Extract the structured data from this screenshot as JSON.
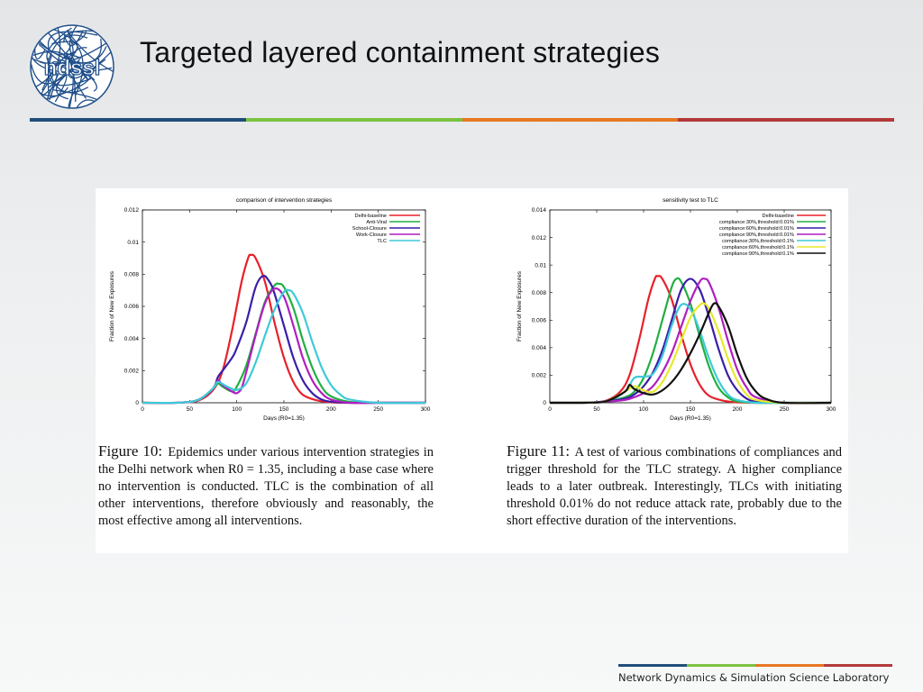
{
  "header": {
    "title": "Targeted layered containment strategies",
    "logo_text": "ndssl"
  },
  "footer": {
    "lab_name": "Network Dynamics & Simulation Science Laboratory"
  },
  "colors": {
    "rule": [
      "#1f4e79",
      "#7cc242",
      "#e87722",
      "#b23a3a"
    ],
    "logo": "#1f4e8a"
  },
  "figure10": {
    "label": "Figure 10:",
    "text": "Epidemics under various intervention strategies in the Delhi network when R0 = 1.35, including a base case where no intervention is conducted. TLC is the combination of all other interventions, therefore obviously and reasonably, the most effective among all interventions."
  },
  "figure11": {
    "label": "Figure 11:",
    "text": "A test of various combinations of compliances and trigger threshold for the TLC strategy. A higher compliance leads to a later outbreak. Interestingly, TLCs with initiating threshold 0.01% do not reduce attack rate, probably due to the short effective duration of the interventions."
  },
  "chart_data": [
    {
      "type": "line",
      "title": "comparison of intervention strategies",
      "xlabel": "Days (R0=1.35)",
      "ylabel": "Fraction of New Exposures",
      "xlim": [
        0,
        300
      ],
      "ylim": [
        0,
        0.012
      ],
      "xticks": [
        "0",
        "50",
        "100",
        "150",
        "200",
        "250",
        "300"
      ],
      "yticks": [
        "0",
        "0.002",
        "0.004",
        "0.006",
        "0.008",
        "0.01",
        "0.012"
      ],
      "legend_position": "top-right",
      "series": [
        {
          "name": "Delhi-baseline",
          "color": "#e8202a",
          "x": [
            0,
            40,
            60,
            75,
            85,
            95,
            105,
            112,
            115,
            120,
            130,
            140,
            150,
            160,
            170,
            185,
            200,
            220,
            250,
            300
          ],
          "y": [
            0,
            1e-05,
            0.00015,
            0.0008,
            0.002,
            0.0045,
            0.0075,
            0.009,
            0.0092,
            0.009,
            0.0075,
            0.005,
            0.0028,
            0.0013,
            0.0005,
            0.00015,
            3e-05,
            0,
            0,
            0
          ]
        },
        {
          "name": "Anti-Viral",
          "color": "#20b040",
          "x": [
            0,
            40,
            60,
            75,
            80,
            85,
            95,
            100,
            110,
            120,
            130,
            140,
            145,
            150,
            160,
            170,
            180,
            190,
            200,
            220,
            250,
            300
          ],
          "y": [
            0,
            1e-05,
            0.0002,
            0.0009,
            0.0012,
            0.001,
            0.0007,
            0.001,
            0.0023,
            0.0043,
            0.0063,
            0.0073,
            0.0074,
            0.0072,
            0.0059,
            0.0039,
            0.0022,
            0.001,
            0.0004,
            5e-05,
            0,
            0
          ]
        },
        {
          "name": "School-Closure",
          "color": "#3a1ea8",
          "x": [
            0,
            40,
            60,
            75,
            80,
            85,
            95,
            100,
            110,
            120,
            128,
            135,
            140,
            150,
            160,
            170,
            180,
            190,
            200,
            220,
            250,
            300
          ],
          "y": [
            0,
            1e-05,
            0.0002,
            0.0009,
            0.0016,
            0.002,
            0.0028,
            0.0034,
            0.005,
            0.0072,
            0.0079,
            0.0075,
            0.0068,
            0.0048,
            0.0028,
            0.0014,
            0.0006,
            0.0002,
            6e-05,
            0,
            0,
            0
          ]
        },
        {
          "name": "Work-Closure",
          "color": "#b01ec0",
          "x": [
            0,
            40,
            60,
            75,
            80,
            85,
            95,
            100,
            105,
            110,
            120,
            130,
            140,
            150,
            160,
            170,
            180,
            190,
            200,
            220,
            250,
            300
          ],
          "y": [
            0,
            1e-05,
            0.0002,
            0.0009,
            0.0014,
            0.0011,
            0.0007,
            0.0006,
            0.0009,
            0.0019,
            0.0042,
            0.0062,
            0.0071,
            0.0066,
            0.0048,
            0.0028,
            0.0014,
            0.0006,
            0.0002,
            0,
            0,
            0
          ]
        },
        {
          "name": "TLC",
          "color": "#3ecad8",
          "x": [
            0,
            40,
            60,
            75,
            80,
            90,
            100,
            110,
            120,
            130,
            140,
            150,
            155,
            160,
            170,
            180,
            190,
            200,
            210,
            220,
            250,
            300
          ],
          "y": [
            0,
            1e-05,
            0.0002,
            0.0009,
            0.0013,
            0.001,
            0.0008,
            0.0012,
            0.0025,
            0.0042,
            0.0058,
            0.0069,
            0.007,
            0.0068,
            0.0056,
            0.0038,
            0.0022,
            0.0011,
            0.0005,
            0.0002,
            0,
            0
          ]
        }
      ]
    },
    {
      "type": "line",
      "title": "sensitivity test to TLC",
      "xlabel": "Days (R0=1.35)",
      "ylabel": "Fraction of New Exposures",
      "xlim": [
        0,
        300
      ],
      "ylim": [
        0,
        0.014
      ],
      "xticks": [
        "0",
        "50",
        "100",
        "150",
        "200",
        "250",
        "300"
      ],
      "yticks": [
        "0",
        "0.002",
        "0.004",
        "0.006",
        "0.008",
        "0.01",
        "0.012",
        "0.014"
      ],
      "legend_position": "top-right",
      "series": [
        {
          "name": "Delhi-baseline",
          "color": "#e8202a",
          "x": [
            0,
            40,
            60,
            75,
            85,
            95,
            105,
            112,
            115,
            120,
            130,
            140,
            150,
            160,
            170,
            185,
            200,
            220,
            250,
            300
          ],
          "y": [
            0,
            1e-05,
            0.00015,
            0.0008,
            0.002,
            0.0045,
            0.0075,
            0.009,
            0.0092,
            0.009,
            0.0075,
            0.005,
            0.0028,
            0.0013,
            0.0005,
            0.00015,
            3e-05,
            0,
            0,
            0
          ]
        },
        {
          "name": "compliance:30%,threshold:0.01%",
          "color": "#20b040",
          "x": [
            0,
            40,
            60,
            80,
            90,
            100,
            110,
            120,
            130,
            135,
            140,
            150,
            160,
            170,
            180,
            190,
            200,
            220,
            250,
            300
          ],
          "y": [
            0,
            1e-05,
            0.0001,
            0.0004,
            0.0008,
            0.0018,
            0.0036,
            0.006,
            0.0084,
            0.009,
            0.0088,
            0.0072,
            0.0048,
            0.0026,
            0.0011,
            0.0004,
            0.0001,
            0,
            0,
            0
          ]
        },
        {
          "name": "compliance:60%,threshold:0.01%",
          "color": "#3a1ea8",
          "x": [
            0,
            40,
            60,
            80,
            90,
            100,
            110,
            120,
            130,
            140,
            150,
            160,
            170,
            180,
            190,
            200,
            210,
            220,
            250,
            300
          ],
          "y": [
            0,
            1e-05,
            0.0001,
            0.0003,
            0.0006,
            0.0012,
            0.0022,
            0.0038,
            0.006,
            0.0082,
            0.009,
            0.0082,
            0.0062,
            0.0039,
            0.002,
            0.0009,
            0.0003,
            0.0001,
            0,
            0
          ]
        },
        {
          "name": "compliance:90%,threshold:0.01%",
          "color": "#b01ec0",
          "x": [
            0,
            40,
            60,
            80,
            90,
            100,
            110,
            120,
            130,
            140,
            150,
            160,
            165,
            170,
            180,
            190,
            200,
            210,
            220,
            250,
            300
          ],
          "y": [
            0,
            1e-05,
            8e-05,
            0.0002,
            0.0004,
            0.0007,
            0.0012,
            0.0022,
            0.0036,
            0.0055,
            0.0074,
            0.0088,
            0.009,
            0.0087,
            0.0069,
            0.0045,
            0.0024,
            0.0011,
            0.0004,
            0,
            0
          ]
        },
        {
          "name": "compliance:30%,threshold:0.1%",
          "color": "#3ecad8",
          "x": [
            0,
            40,
            60,
            80,
            90,
            100,
            110,
            120,
            130,
            140,
            150,
            160,
            170,
            180,
            190,
            200,
            220,
            250,
            300
          ],
          "y": [
            0,
            1e-05,
            0.0001,
            0.0008,
            0.0018,
            0.0019,
            0.0021,
            0.0034,
            0.0056,
            0.0071,
            0.0068,
            0.0052,
            0.0032,
            0.0016,
            0.0006,
            0.0002,
            0,
            0,
            0
          ]
        },
        {
          "name": "compliance:60%,threshold:0.1%",
          "color": "#e8e82a",
          "x": [
            0,
            40,
            60,
            80,
            90,
            100,
            110,
            120,
            130,
            140,
            150,
            160,
            165,
            170,
            180,
            190,
            200,
            210,
            220,
            250,
            300
          ],
          "y": [
            0,
            1e-05,
            0.0001,
            0.0008,
            0.0012,
            0.0009,
            0.0008,
            0.0015,
            0.0028,
            0.0045,
            0.0062,
            0.0071,
            0.0072,
            0.0068,
            0.0052,
            0.0032,
            0.0016,
            0.0006,
            0.0002,
            0,
            0
          ]
        },
        {
          "name": "compliance:90%,threshold:0.1%",
          "color": "#111111",
          "x": [
            0,
            40,
            60,
            80,
            85,
            90,
            100,
            110,
            120,
            130,
            140,
            150,
            160,
            170,
            175,
            180,
            190,
            200,
            210,
            220,
            230,
            250,
            300
          ],
          "y": [
            0,
            1e-05,
            0.0001,
            0.0008,
            0.0013,
            0.001,
            0.0007,
            0.0006,
            0.0009,
            0.0015,
            0.0024,
            0.0036,
            0.005,
            0.0066,
            0.0072,
            0.007,
            0.0056,
            0.0035,
            0.0018,
            0.0008,
            0.0003,
            0,
            0
          ]
        }
      ]
    }
  ]
}
